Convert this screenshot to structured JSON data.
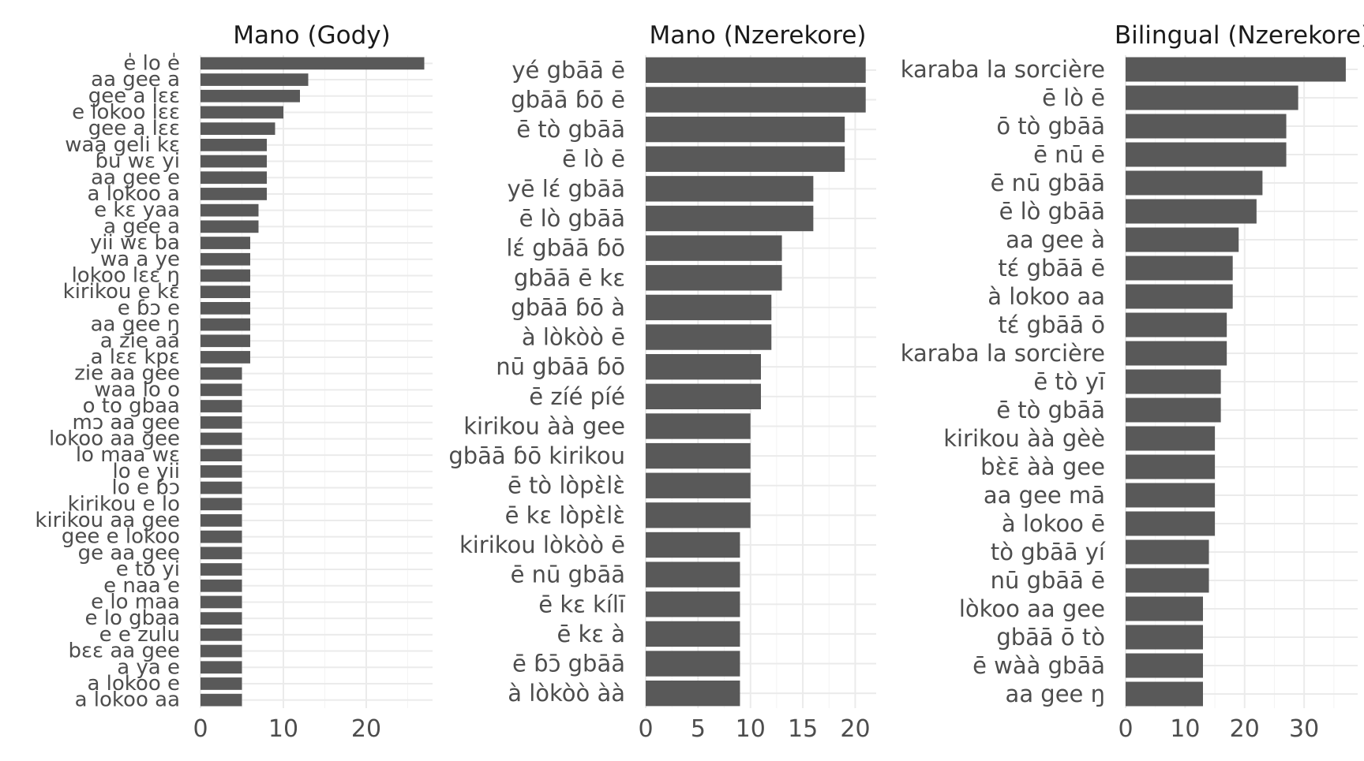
{
  "figure": {
    "background": "#ffffff",
    "bar_color": "#595959"
  },
  "chart_data": [
    {
      "type": "bar",
      "orientation": "horizontal",
      "title": "Mano (Gody)",
      "xlabel": "",
      "ylabel": "",
      "xlim": [
        0,
        28
      ],
      "x_ticks": [
        0,
        10,
        20
      ],
      "grid": true,
      "categories": [
        "e̍ lo e̍",
        "aa gee a",
        "gee a lɛɛ",
        "e lokoo lɛɛ",
        "gee a lɛɛ",
        "waa geli kɛ",
        "ɓu wɛ yi",
        "aa gee e",
        "a lokoo a",
        "e kɛ yaa",
        "a gee a",
        "yii wɛ ba",
        "wa a ye",
        "lokoo lɛɛ ŋ",
        "kirikou e kɛ",
        "e ɓɔ e",
        "aa gee ŋ",
        "a zie aa",
        "a lɛɛ kpɛ",
        "zie aa gee",
        "waa lo o",
        "o to gbaa",
        "mɔ aa gee",
        "lokoo aa gee",
        "lo maa wɛ",
        "lo e yii",
        "lo e ɓɔ",
        "kirikou e lo",
        "kirikou aa gee",
        "gee e lokoo",
        "ge aa gee",
        "e to yi",
        "e naa e",
        "e lo maa",
        "e lo gbaa",
        "e e zulu",
        "bɛɛ aa gee",
        "a ya e",
        "a lokoo e",
        "a lokoo aa"
      ],
      "values": [
        27,
        13,
        12,
        10,
        9,
        8,
        8,
        8,
        8,
        7,
        7,
        6,
        6,
        6,
        6,
        6,
        6,
        6,
        6,
        5,
        5,
        5,
        5,
        5,
        5,
        5,
        5,
        5,
        5,
        5,
        5,
        5,
        5,
        5,
        5,
        5,
        5,
        5,
        5,
        5
      ]
    },
    {
      "type": "bar",
      "orientation": "horizontal",
      "title": "Mano (Nzerekore)",
      "xlabel": "",
      "ylabel": "",
      "xlim": [
        0,
        22
      ],
      "x_ticks": [
        0,
        5,
        10,
        15,
        20
      ],
      "grid": true,
      "categories": [
        "yé gbāā ē",
        "gbāā ɓō ē",
        "ē tò gbāā",
        "ē lò ē",
        "yē lɛ́ gbāā",
        "ē lò gbāā",
        "lɛ́ gbāā ɓō",
        "gbāā ē kɛ",
        "gbāā ɓō à",
        "à lòkòò ē",
        "nū gbāā ɓō",
        "ē zíé píé",
        "kirikou àà gee",
        "gbāā ɓō kirikou",
        "ē tò lòpɛ̀lɛ̀",
        "ē kɛ lòpɛ̀lɛ̀",
        "kirikou lòkòò ē",
        "ē nū gbāā",
        "ē kɛ kílī",
        "ē kɛ à",
        "ē ɓɔ̄ gbāā",
        "à lòkòò àà"
      ],
      "values": [
        21,
        21,
        19,
        19,
        16,
        16,
        13,
        13,
        12,
        12,
        11,
        11,
        10,
        10,
        10,
        10,
        9,
        9,
        9,
        9,
        9,
        9
      ]
    },
    {
      "type": "bar",
      "orientation": "horizontal",
      "title": "Bilingual (Nzerekore)",
      "xlabel": "",
      "ylabel": "",
      "xlim": [
        0,
        39
      ],
      "x_ticks": [
        0,
        10,
        20,
        30
      ],
      "grid": true,
      "categories": [
        "karaba la sorcière",
        "ē lò ē",
        "ō tò gbāā",
        "ē nū ē",
        "ē nū gbāā",
        "ē lò gbāā",
        "aa gee à",
        "tɛ́ gbāā ē",
        "à lokoo aa",
        "tɛ́ gbāā ō",
        "karaba la sorcière",
        "ē tò yī",
        "ē tò gbāā",
        "kirikou àà gèè",
        "bɛ̀ɛ̄ àà gee",
        "aa gee mā",
        "à lokoo ē",
        "tò gbāā yí",
        "nū gbāā ē",
        "lòkoo aa gee",
        "gbāā ō tò",
        "ē wàà gbāā",
        "aa gee ŋ"
      ],
      "values": [
        37,
        29,
        27,
        27,
        23,
        22,
        19,
        18,
        18,
        17,
        17,
        16,
        16,
        15,
        15,
        15,
        15,
        14,
        14,
        13,
        13,
        13,
        13
      ]
    }
  ]
}
